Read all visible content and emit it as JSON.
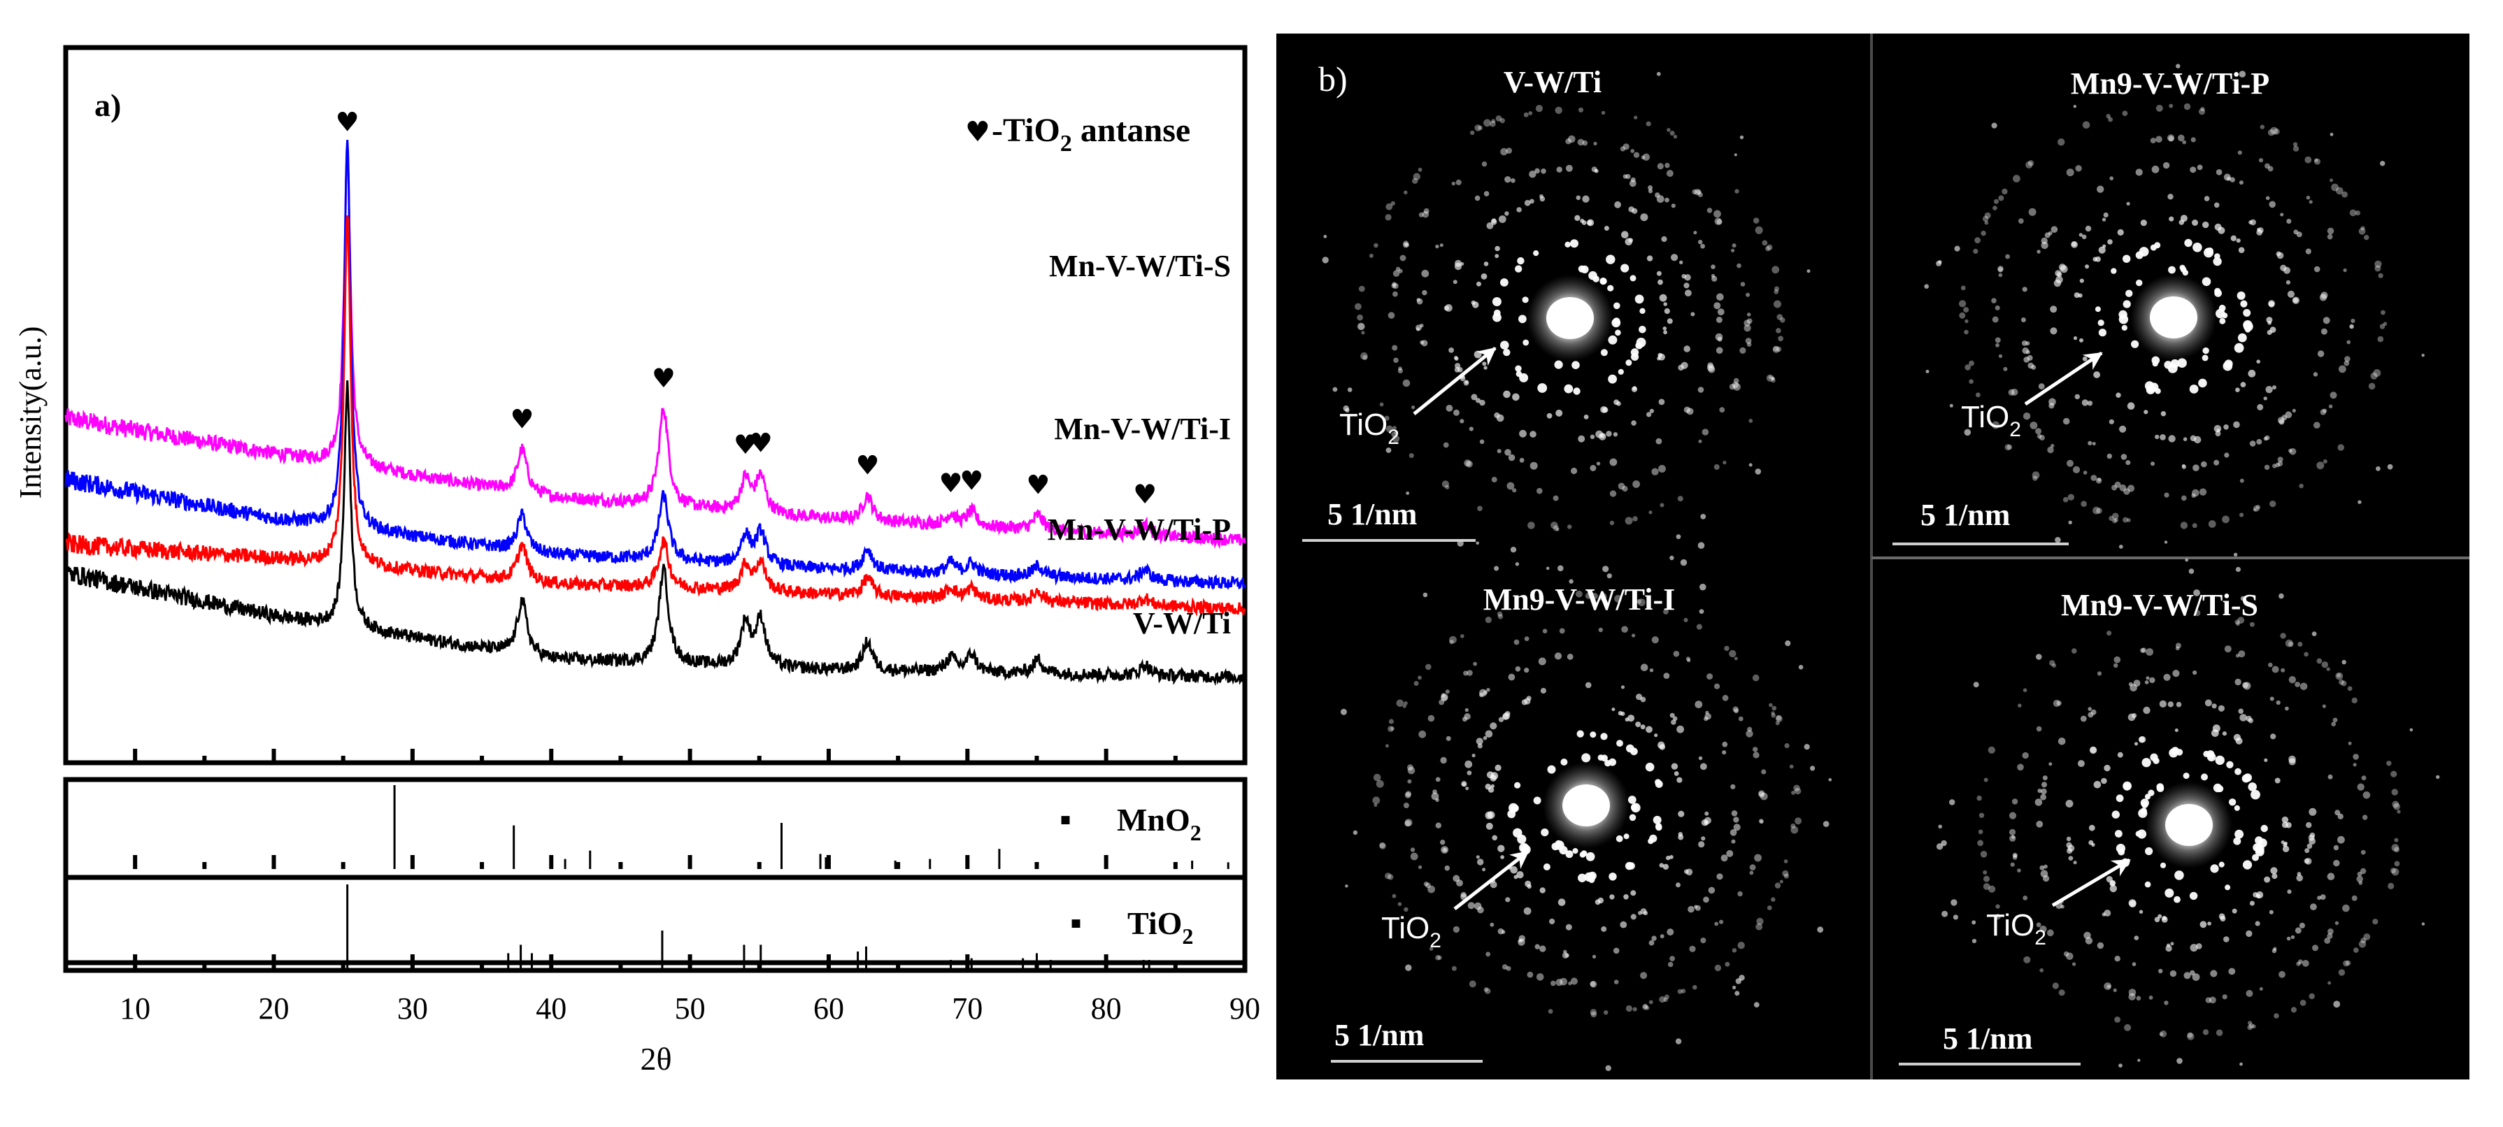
{
  "figure": {
    "panel_a_label": "a)",
    "panel_b_label": "b)",
    "legend_symbol": "♥",
    "legend_text": "-TiO",
    "legend_sub": "2",
    "legend_tail": " antanse"
  },
  "chart_data": {
    "type": "line",
    "title": "",
    "xlabel": "2θ",
    "ylabel": "Intensity(a.u.)",
    "xlim": [
      5,
      90
    ],
    "x_ticks": [
      10,
      20,
      30,
      40,
      50,
      60,
      70,
      80,
      90
    ],
    "grid": false,
    "series": [
      {
        "name": "Mn-V-W/Ti-S",
        "color": "#ff00ff",
        "background": [
          [
            5,
            0.8
          ],
          [
            20,
            0.7
          ],
          [
            40,
            0.58
          ],
          [
            60,
            0.52
          ],
          [
            90,
            0.46
          ]
        ],
        "peaks": [
          [
            25.3,
            0.87
          ],
          [
            37.9,
            0.12
          ],
          [
            48.1,
            0.27
          ],
          [
            54.0,
            0.09
          ],
          [
            55.1,
            0.1
          ],
          [
            62.8,
            0.07
          ],
          [
            68.8,
            0.03
          ],
          [
            70.3,
            0.04
          ],
          [
            75.1,
            0.04
          ],
          [
            82.8,
            0.03
          ]
        ]
      },
      {
        "name": "Mn-V-W/Ti-I",
        "color": "#0000ff",
        "background": [
          [
            5,
            0.63
          ],
          [
            20,
            0.52
          ],
          [
            40,
            0.42
          ],
          [
            60,
            0.38
          ],
          [
            90,
            0.34
          ]
        ],
        "peaks": [
          [
            25.3,
            1.07
          ],
          [
            37.9,
            0.1
          ],
          [
            48.1,
            0.18
          ],
          [
            54.0,
            0.08
          ],
          [
            55.1,
            0.09
          ],
          [
            62.8,
            0.06
          ],
          [
            68.8,
            0.03
          ],
          [
            70.3,
            0.03
          ],
          [
            75.1,
            0.03
          ],
          [
            82.8,
            0.03
          ]
        ]
      },
      {
        "name": "Mn-V-W/Ti-P",
        "color": "#ff0000",
        "background": [
          [
            5,
            0.45
          ],
          [
            20,
            0.41
          ],
          [
            40,
            0.34
          ],
          [
            60,
            0.31
          ],
          [
            90,
            0.27
          ]
        ],
        "peaks": [
          [
            25.3,
            0.98
          ],
          [
            37.9,
            0.1
          ],
          [
            48.1,
            0.13
          ],
          [
            54.0,
            0.07
          ],
          [
            55.1,
            0.08
          ],
          [
            62.8,
            0.05
          ],
          [
            68.8,
            0.03
          ],
          [
            70.3,
            0.03
          ],
          [
            75.1,
            0.03
          ],
          [
            82.8,
            0.02
          ]
        ]
      },
      {
        "name": "V-W/Ti",
        "color": "#000000",
        "background": [
          [
            5,
            0.37
          ],
          [
            20,
            0.25
          ],
          [
            40,
            0.13
          ],
          [
            60,
            0.1
          ],
          [
            90,
            0.08
          ]
        ],
        "peaks": [
          [
            25.3,
            0.67
          ],
          [
            37.9,
            0.15
          ],
          [
            48.1,
            0.26
          ],
          [
            54.0,
            0.12
          ],
          [
            55.1,
            0.13
          ],
          [
            62.8,
            0.08
          ],
          [
            68.8,
            0.04
          ],
          [
            70.3,
            0.05
          ],
          [
            75.1,
            0.04
          ],
          [
            82.8,
            0.03
          ]
        ]
      }
    ],
    "anatase_peak_markers": [
      25.3,
      37.9,
      48.1,
      54.0,
      55.1,
      62.8,
      68.8,
      70.3,
      75.1,
      82.8
    ],
    "reference_patterns": [
      {
        "name": "MnO",
        "sub": "2",
        "lines": [
          [
            28.7,
            1.0
          ],
          [
            37.3,
            0.52
          ],
          [
            41.0,
            0.12
          ],
          [
            42.8,
            0.22
          ],
          [
            56.6,
            0.55
          ],
          [
            59.4,
            0.18
          ],
          [
            59.8,
            0.14
          ],
          [
            64.8,
            0.1
          ],
          [
            67.3,
            0.12
          ],
          [
            72.3,
            0.24
          ],
          [
            86.2,
            0.1
          ],
          [
            88.8,
            0.08
          ]
        ]
      },
      {
        "name": "TiO",
        "sub": "2",
        "lines": [
          [
            25.3,
            1.0
          ],
          [
            36.9,
            0.18
          ],
          [
            37.8,
            0.28
          ],
          [
            38.6,
            0.18
          ],
          [
            48.0,
            0.45
          ],
          [
            53.9,
            0.28
          ],
          [
            55.1,
            0.28
          ],
          [
            62.1,
            0.2
          ],
          [
            62.7,
            0.26
          ],
          [
            68.8,
            0.1
          ],
          [
            70.3,
            0.12
          ],
          [
            74.0,
            0.12
          ],
          [
            75.0,
            0.18
          ],
          [
            76.0,
            0.1
          ],
          [
            82.7,
            0.1
          ],
          [
            83.1,
            0.1
          ]
        ]
      }
    ]
  },
  "sad": {
    "panels": [
      {
        "title": "V-W/Ti",
        "ring_label": "TiO",
        "ring_sub": "2",
        "scale": "5 1/nm"
      },
      {
        "title": "Mn9-V-W/Ti-P",
        "ring_label": "TiO",
        "ring_sub": "2",
        "scale": "5 1/nm"
      },
      {
        "title": "Mn9-V-W/Ti-I",
        "ring_label": "TiO",
        "ring_sub": "2",
        "scale": "5 1/nm"
      },
      {
        "title": "Mn9-V-W/Ti-S",
        "ring_label": "TiO",
        "ring_sub": "2",
        "scale": "5 1/nm"
      }
    ]
  }
}
